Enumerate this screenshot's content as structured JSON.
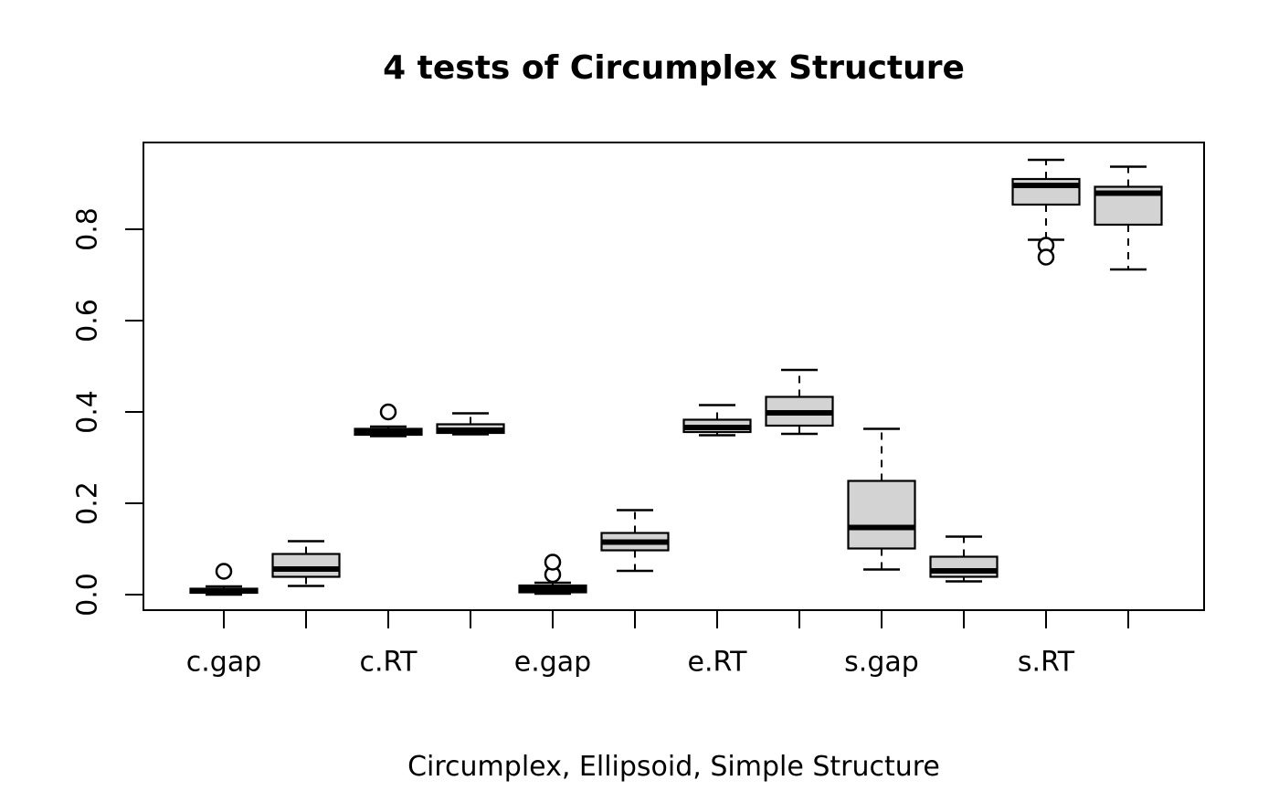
{
  "figure": {
    "background": "#ffffff"
  },
  "chart_data": {
    "type": "boxplot",
    "title": "4 tests of Circumplex Structure",
    "xlabel": "Circumplex, Ellipsoid, Simple Structure",
    "ylabel": "",
    "grid": false,
    "legend": null,
    "ylim": [
      -0.034,
      0.99
    ],
    "ytick_values": [
      0.0,
      0.2,
      0.4,
      0.6,
      0.8
    ],
    "ytick_labels": [
      "0.0",
      "0.2",
      "0.4",
      "0.6",
      "0.8"
    ],
    "group_labels": [
      "c.gap",
      "c.RT",
      "e.gap",
      "e.RT",
      "s.gap",
      "s.RT"
    ],
    "boxes": [
      {
        "group": "c.gap",
        "pair": 1,
        "whisker_low": 0.0,
        "q1": 0.004,
        "median": 0.008,
        "q3": 0.013,
        "whisker_high": 0.018,
        "outliers": [
          0.051
        ]
      },
      {
        "group": "c.gap",
        "pair": 2,
        "whisker_low": 0.019,
        "q1": 0.039,
        "median": 0.056,
        "q3": 0.089,
        "whisker_high": 0.117,
        "outliers": []
      },
      {
        "group": "c.RT",
        "pair": 1,
        "whisker_low": 0.347,
        "q1": 0.35,
        "median": 0.356,
        "q3": 0.363,
        "whisker_high": 0.368,
        "outliers": [
          0.4
        ]
      },
      {
        "group": "c.RT",
        "pair": 2,
        "whisker_low": 0.351,
        "q1": 0.354,
        "median": 0.36,
        "q3": 0.373,
        "whisker_high": 0.397,
        "outliers": []
      },
      {
        "group": "e.gap",
        "pair": 1,
        "whisker_low": 0.002,
        "q1": 0.005,
        "median": 0.012,
        "q3": 0.02,
        "whisker_high": 0.026,
        "outliers": [
          0.044,
          0.071
        ]
      },
      {
        "group": "e.gap",
        "pair": 2,
        "whisker_low": 0.052,
        "q1": 0.097,
        "median": 0.115,
        "q3": 0.135,
        "whisker_high": 0.185,
        "outliers": []
      },
      {
        "group": "e.RT",
        "pair": 1,
        "whisker_low": 0.349,
        "q1": 0.356,
        "median": 0.366,
        "q3": 0.383,
        "whisker_high": 0.415,
        "outliers": []
      },
      {
        "group": "e.RT",
        "pair": 2,
        "whisker_low": 0.352,
        "q1": 0.37,
        "median": 0.398,
        "q3": 0.433,
        "whisker_high": 0.492,
        "outliers": []
      },
      {
        "group": "s.gap",
        "pair": 1,
        "whisker_low": 0.055,
        "q1": 0.101,
        "median": 0.147,
        "q3": 0.249,
        "whisker_high": 0.363,
        "outliers": []
      },
      {
        "group": "s.gap",
        "pair": 2,
        "whisker_low": 0.029,
        "q1": 0.039,
        "median": 0.052,
        "q3": 0.083,
        "whisker_high": 0.127,
        "outliers": []
      },
      {
        "group": "s.RT",
        "pair": 1,
        "whisker_low": 0.777,
        "q1": 0.854,
        "median": 0.896,
        "q3": 0.91,
        "whisker_high": 0.952,
        "outliers": [
          0.765,
          0.739
        ]
      },
      {
        "group": "s.RT",
        "pair": 2,
        "whisker_low": 0.712,
        "q1": 0.81,
        "median": 0.879,
        "q3": 0.893,
        "whisker_high": 0.937,
        "outliers": []
      }
    ],
    "colors": {
      "box_fill": "#d3d3d3",
      "line": "#000000",
      "background": "#ffffff"
    },
    "whisker_linestyle": "dashed",
    "layout_hint": "12 boxes in 6 labelled pairs; y-axis tick labels rotated 90 degrees"
  }
}
